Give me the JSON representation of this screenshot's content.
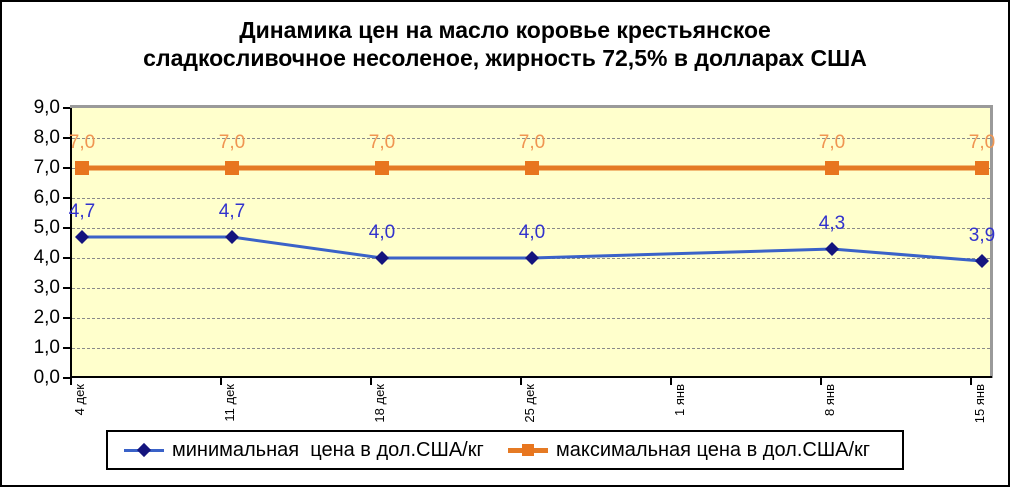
{
  "title": {
    "line1": "Динамика цен на масло коровье крестьянское",
    "line2": "сладкосливочное несоленое, жирность 72,5% в долларах США"
  },
  "chart_data": {
    "type": "line",
    "categories": [
      "4 дек",
      "11 дек",
      "18 дек",
      "25 дек",
      "1 янв",
      "8 янв",
      "15 янв"
    ],
    "series": [
      {
        "name": "минимальная  цена в дол.США/кг",
        "values": [
          4.7,
          4.7,
          4.0,
          4.0,
          null,
          4.3,
          3.9
        ],
        "point_labels": [
          "4,7",
          "4,7",
          "4,0",
          "4,0",
          null,
          "4,3",
          "3,9"
        ],
        "marker": "diamond",
        "line_color": "#3A62C8",
        "marker_color": "#14147E",
        "label_color": "#3232CC"
      },
      {
        "name": "максимальная цена в дол.США/кг",
        "values": [
          7.0,
          7.0,
          7.0,
          7.0,
          null,
          7.0,
          7.0
        ],
        "point_labels": [
          "7,0",
          "7,0",
          "7,0",
          "7,0",
          null,
          "7,0",
          "7,0"
        ],
        "marker": "square",
        "line_color": "#E57A24",
        "marker_color": "#E8761F",
        "label_color": "#F09552"
      }
    ],
    "ylim": [
      0,
      9
    ],
    "ytick_labels": [
      "0,0",
      "1,0",
      "2,0",
      "3,0",
      "4,0",
      "5,0",
      "6,0",
      "7,0",
      "8,0",
      "9,0"
    ],
    "grid": true,
    "legend_position": "bottom",
    "plot_bg": "#FFFFCC",
    "grid_color": "#8A8A8A",
    "plot_border_color": "#9A9A9A",
    "axis_color": "#000000"
  }
}
